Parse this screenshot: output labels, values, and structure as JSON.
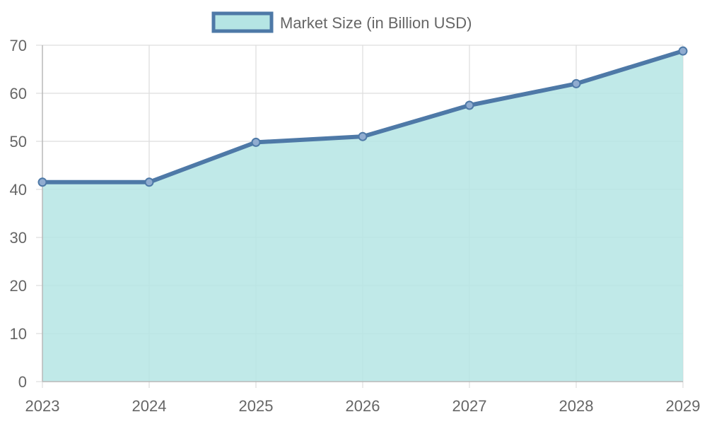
{
  "chart_data": {
    "type": "area",
    "title": "",
    "xlabel": "",
    "ylabel": "",
    "categories": [
      "2023",
      "2024",
      "2025",
      "2026",
      "2027",
      "2028",
      "2029"
    ],
    "series": [
      {
        "name": "Market Size (in Billion USD)",
        "values": [
          41.5,
          41.5,
          49.8,
          51.0,
          57.5,
          62.0,
          68.8
        ]
      }
    ],
    "ylim": [
      0,
      70
    ],
    "yticks": [
      0,
      10,
      20,
      30,
      40,
      50,
      60,
      70
    ],
    "grid": true,
    "legend": "top-center",
    "colors": {
      "line": "#4e79a7",
      "fill": "#b5e5e4",
      "point_fill": "#90acd0",
      "grid": "#dddddd",
      "axis": "#b8b8b8",
      "text": "#666666"
    }
  }
}
